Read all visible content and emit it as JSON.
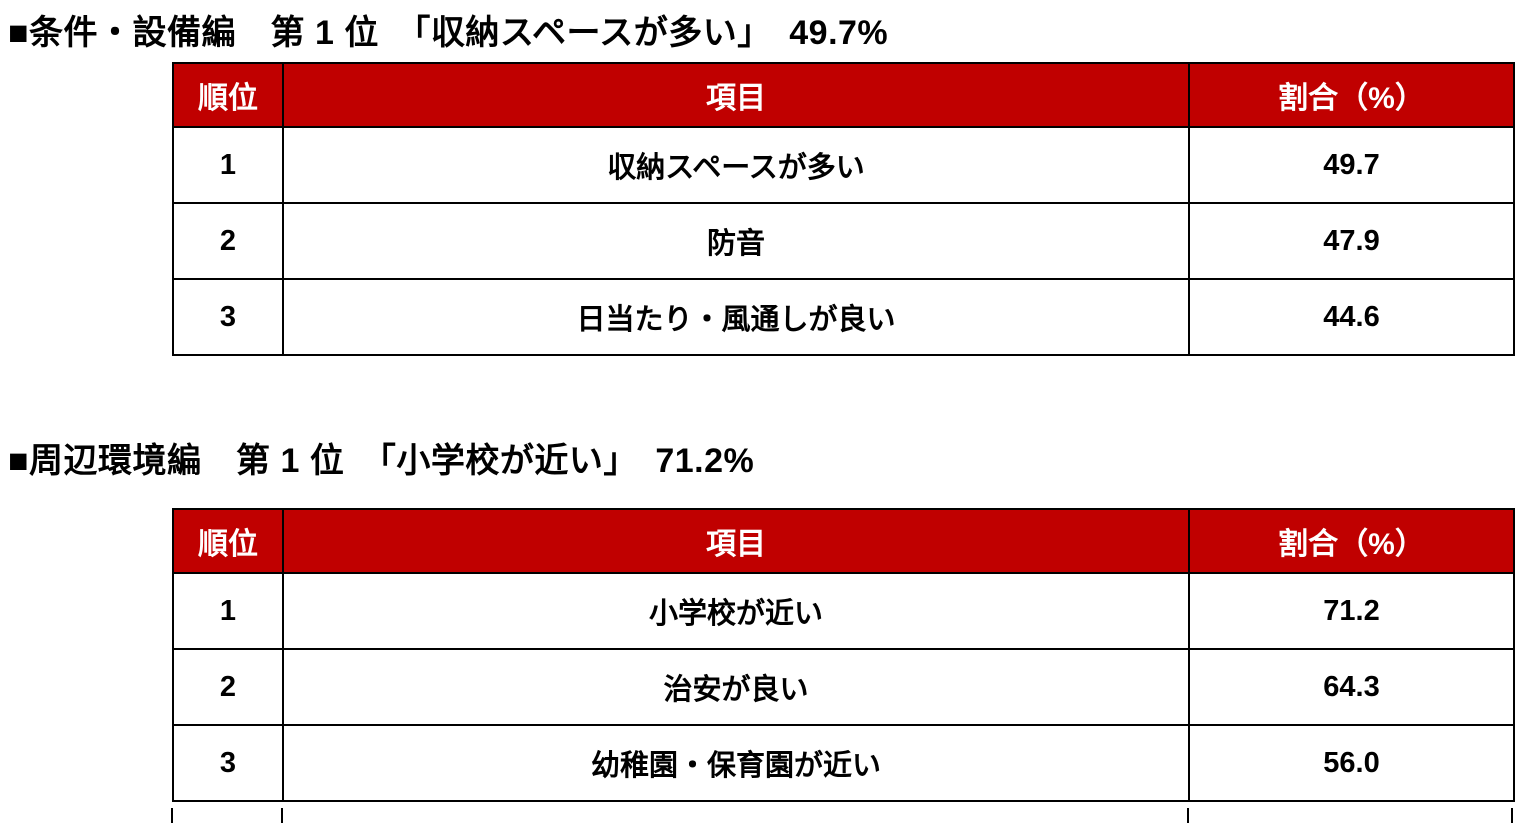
{
  "colors": {
    "header_bg": "#c00000",
    "header_text": "#ffffff",
    "body_text": "#000000",
    "border": "#000000",
    "page_bg": "#ffffff"
  },
  "sections": [
    {
      "heading": "■条件・設備編　第 1 位　「収納スペースが多い」　49.7%",
      "table": {
        "headers": [
          "順位",
          "項目",
          "割合（%）"
        ],
        "rows": [
          {
            "rank": "1",
            "item": "収納スペースが多い",
            "value": "49.7"
          },
          {
            "rank": "2",
            "item": "防音",
            "value": "47.9"
          },
          {
            "rank": "3",
            "item": "日当たり・風通しが良い",
            "value": "44.6"
          }
        ]
      }
    },
    {
      "heading": "■周辺環境編　第 1 位　「小学校が近い」　71.2%",
      "table": {
        "headers": [
          "順位",
          "項目",
          "割合（%）"
        ],
        "rows": [
          {
            "rank": "1",
            "item": "小学校が近い",
            "value": "71.2"
          },
          {
            "rank": "2",
            "item": "治安が良い",
            "value": "64.3"
          },
          {
            "rank": "3",
            "item": "幼稚園・保育園が近い",
            "value": "56.0"
          }
        ]
      }
    }
  ]
}
